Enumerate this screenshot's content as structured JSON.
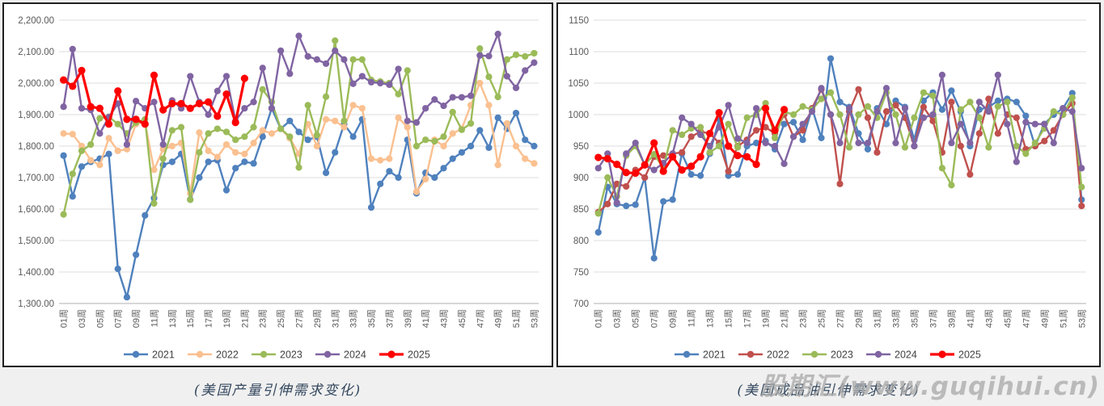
{
  "watermark": {
    "text": "股期汇(www.guqihui.cn)",
    "color": "#a9a9a9"
  },
  "legend_years": [
    "2021",
    "2022",
    "2023",
    "2024",
    "2025"
  ],
  "chart_data": [
    {
      "type": "line",
      "caption": "(美国产量引伸需求变化)",
      "grid": true,
      "legend_position": "bottom",
      "ylim": [
        1300,
        2200
      ],
      "ytick_step": 100,
      "ytick_format": "comma2",
      "ytick_labels": [
        "2,200.00",
        "2,100.00",
        "2,000.00",
        "1,900.00",
        "1,800.00",
        "1,700.00",
        "1,600.00",
        "1,500.00",
        "1,400.00",
        "1,300.00"
      ],
      "xtick_labels": [
        "01周",
        "03周",
        "05周",
        "07周",
        "09周",
        "11周",
        "13周",
        "15周",
        "17周",
        "19周",
        "21周",
        "23周",
        "25周",
        "27周",
        "29周",
        "31周",
        "33周",
        "35周",
        "37周",
        "39周",
        "41周",
        "43周",
        "45周",
        "47周",
        "49周",
        "51周",
        "53周"
      ],
      "x_weeks": 53,
      "series": [
        {
          "name": "2021",
          "color": "#4F81BD",
          "values": [
            1770,
            1640,
            1735,
            1750,
            1760,
            1775,
            1410,
            1320,
            1455,
            1580,
            1635,
            1740,
            1750,
            1775,
            1630,
            1700,
            1750,
            1755,
            1660,
            1730,
            1750,
            1745,
            1830,
            1920,
            1855,
            1880,
            1845,
            1820,
            1830,
            1715,
            1780,
            1870,
            1830,
            1885,
            1605,
            1680,
            1720,
            1700,
            1820,
            1650,
            1715,
            1700,
            1730,
            1760,
            1780,
            1800,
            1850,
            1795,
            1890,
            1855,
            1905,
            1820,
            1800
          ]
        },
        {
          "name": "2022",
          "color": "#FAC090",
          "values": [
            1840,
            1838,
            1800,
            1755,
            1740,
            1825,
            1785,
            1790,
            1870,
            1875,
            1725,
            1790,
            1800,
            1810,
            1650,
            1843,
            1785,
            1765,
            1805,
            1780,
            1775,
            1810,
            1850,
            1840,
            1855,
            1825,
            1775,
            1870,
            1800,
            1885,
            1880,
            1860,
            1930,
            1920,
            1760,
            1755,
            1760,
            1890,
            1860,
            1655,
            1695,
            1820,
            1800,
            1840,
            1855,
            1930,
            2000,
            1930,
            1740,
            1872,
            1800,
            1760,
            1745
          ]
        },
        {
          "name": "2023",
          "color": "#9BBB59",
          "values": [
            1583,
            1712,
            1785,
            1805,
            1888,
            1893,
            1870,
            1840,
            1875,
            1885,
            1618,
            1760,
            1850,
            1860,
            1630,
            1780,
            1840,
            1855,
            1845,
            1820,
            1830,
            1860,
            1980,
            1940,
            1855,
            1830,
            1732,
            1930,
            1835,
            1957,
            2135,
            1880,
            2075,
            2075,
            2010,
            2005,
            2000,
            1965,
            2040,
            1800,
            1820,
            1815,
            1830,
            1908,
            1852,
            1872,
            2110,
            2020,
            1956,
            2075,
            2090,
            2085,
            2095
          ]
        },
        {
          "name": "2024",
          "color": "#8064A2",
          "values": [
            1925,
            2108,
            1920,
            1915,
            1840,
            1892,
            1935,
            1805,
            1943,
            1920,
            1940,
            1805,
            1945,
            1920,
            2022,
            1940,
            1900,
            1975,
            2022,
            1880,
            1920,
            1940,
            2048,
            1920,
            2103,
            2030,
            2150,
            2085,
            2075,
            2062,
            2103,
            2075,
            1998,
            2022,
            2003,
            2000,
            1995,
            2045,
            1880,
            1875,
            1920,
            1948,
            1928,
            1955,
            1955,
            1960,
            2088,
            2086,
            2156,
            2022,
            1985,
            2040,
            2065
          ]
        },
        {
          "name": "2025",
          "color": "#FF0000",
          "values": [
            2010,
            1990,
            2040,
            1925,
            1920,
            1870,
            1975,
            1885,
            1885,
            1870,
            2025,
            1915,
            1935,
            1935,
            1920,
            1935,
            1940,
            1895,
            1965,
            1875,
            2015
          ]
        }
      ]
    },
    {
      "type": "line",
      "caption": "(美国成品油引伸需求变化)",
      "grid": true,
      "legend_position": "bottom",
      "ylim": [
        700,
        1150
      ],
      "ytick_step": 50,
      "ytick_format": "int",
      "ytick_labels": [
        "1150",
        "1100",
        "1050",
        "1000",
        "950",
        "900",
        "850",
        "800",
        "750",
        "700"
      ],
      "xtick_labels": [
        "01周",
        "03周",
        "05周",
        "07周",
        "09周",
        "11周",
        "13周",
        "15周",
        "17周",
        "19周",
        "21周",
        "23周",
        "25周",
        "27周",
        "29周",
        "31周",
        "33周",
        "35周",
        "37周",
        "39周",
        "41周",
        "43周",
        "45周",
        "47周",
        "49周",
        "51周",
        "53周"
      ],
      "x_weeks": 53,
      "series": [
        {
          "name": "2021",
          "color": "#4F81BD",
          "values": [
            813,
            885,
            858,
            855,
            857,
            900,
            772,
            862,
            865,
            938,
            905,
            903,
            938,
            993,
            903,
            905,
            950,
            955,
            958,
            945,
            985,
            988,
            960,
            1010,
            963,
            1089,
            1020,
            1012,
            970,
            945,
            1010,
            985,
            1022,
            1012,
            960,
            1022,
            1035,
            1008,
            1038,
            1005,
            950,
            1008,
            1012,
            1022,
            1025,
            1020,
            998,
            950,
            985,
            1000,
            1010,
            1034,
            865
          ]
        },
        {
          "name": "2022",
          "color": "#C0504D",
          "values": [
            845,
            858,
            890,
            886,
            912,
            900,
            933,
            935,
            938,
            940,
            965,
            973,
            970,
            955,
            910,
            950,
            960,
            975,
            980,
            970,
            1000,
            965,
            975,
            1010,
            1040,
            1000,
            890,
            1005,
            1040,
            995,
            940,
            1005,
            1015,
            995,
            950,
            1012,
            990,
            940,
            1020,
            950,
            905,
            970,
            1025,
            970,
            1000,
            995,
            945,
            950,
            958,
            975,
            1000,
            1018,
            855
          ]
        },
        {
          "name": "2023",
          "color": "#9BBB59",
          "values": [
            843,
            900,
            870,
            935,
            950,
            920,
            937,
            915,
            975,
            968,
            978,
            980,
            940,
            950,
            985,
            948,
            995,
            1000,
            1018,
            963,
            1005,
            1000,
            1013,
            1008,
            1025,
            1035,
            1000,
            948,
            1000,
            1013,
            995,
            1035,
            1000,
            948,
            995,
            1035,
            1030,
            915,
            888,
            1008,
            1020,
            995,
            948,
            1013,
            1020,
            950,
            938,
            955,
            978,
            1005,
            1000,
            1027,
            885
          ]
        },
        {
          "name": "2024",
          "color": "#8064A2",
          "values": [
            915,
            938,
            860,
            938,
            955,
            920,
            912,
            923,
            938,
            995,
            985,
            968,
            950,
            980,
            1015,
            962,
            955,
            1010,
            955,
            950,
            922,
            965,
            985,
            1005,
            1042,
            1000,
            955,
            1010,
            955,
            955,
            1005,
            1042,
            955,
            1010,
            950,
            995,
            1000,
            1063,
            955,
            985,
            955,
            1020,
            1005,
            1063,
            985,
            925,
            988,
            985,
            985,
            955,
            1010,
            1005,
            915
          ]
        },
        {
          "name": "2025",
          "color": "#FF0000",
          "values": [
            932,
            930,
            921,
            908,
            907,
            920,
            955,
            910,
            933,
            912,
            918,
            933,
            970,
            1003,
            950,
            935,
            933,
            921,
            1010,
            975,
            1008
          ]
        }
      ]
    }
  ]
}
